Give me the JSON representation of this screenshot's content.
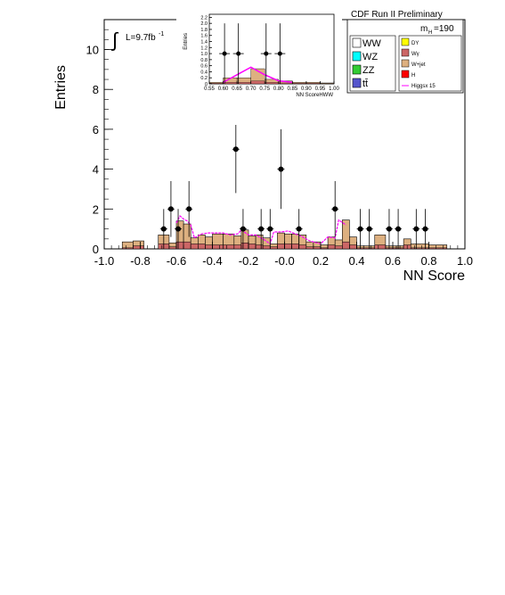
{
  "experiment_label": "CDF Run II Preliminary",
  "lumi_label": "L=9.7fb",
  "lumi_exp": "-1",
  "mass_label": "m",
  "mass_sub": "H",
  "mass_value": "=190",
  "colors": {
    "ww": "#ffffff",
    "wz": "#00ffff",
    "zz": "#33cc33",
    "tt": "#5555cc",
    "dy": "#ffff00",
    "wgamma": "#cc6666",
    "wjet": "#ddb080",
    "h": "#ff0000",
    "higgs": "#ff00ff",
    "data": "#000000"
  },
  "legend": {
    "big": [
      {
        "key": "ww",
        "label": "WW"
      },
      {
        "key": "wz",
        "label": "WZ"
      },
      {
        "key": "zz",
        "label": "ZZ"
      },
      {
        "key": "tt",
        "label": "tt̄"
      }
    ],
    "small": [
      {
        "key": "dy",
        "label": "DY"
      },
      {
        "key": "wgamma",
        "label": "Wγ"
      },
      {
        "key": "wjet",
        "label": "W+jet"
      },
      {
        "key": "h",
        "label": "H"
      },
      {
        "key": "higgs",
        "label": "Higgsx 15"
      }
    ]
  },
  "chart_data": [
    {
      "type": "bar",
      "name": "main",
      "xlabel": "NN Score",
      "ylabel": "Entries",
      "xlim": [
        -1.0,
        1.0
      ],
      "ylim": [
        0,
        11.5
      ],
      "xticks": [
        "-1.0",
        "-0.8",
        "-0.6",
        "-0.4",
        "-0.2",
        "-0.0",
        "0.2",
        "0.4",
        "0.6",
        "0.8",
        "1.0"
      ],
      "xtick_values": [
        -1.0,
        -0.8,
        -0.6,
        -0.4,
        -0.2,
        0.0,
        0.2,
        0.4,
        0.6,
        0.8,
        1.0
      ],
      "yticks": [
        "0",
        "2",
        "4",
        "6",
        "8",
        "10"
      ],
      "ytick_values": [
        0,
        2,
        4,
        6,
        8,
        10
      ],
      "bin_edges": [
        -1.0,
        -0.9,
        -0.84,
        -0.78,
        -0.7,
        -0.64,
        -0.6,
        -0.56,
        -0.52,
        -0.48,
        -0.44,
        -0.4,
        -0.34,
        -0.28,
        -0.24,
        -0.2,
        -0.16,
        -0.12,
        -0.08,
        -0.04,
        0.0,
        0.04,
        0.08,
        0.12,
        0.16,
        0.2,
        0.24,
        0.28,
        0.32,
        0.36,
        0.4,
        0.5,
        0.56,
        0.62,
        0.66,
        0.7,
        0.8,
        0.9,
        1.0
      ],
      "background_total": [
        0.0,
        0.35,
        0.4,
        0.0,
        0.7,
        0.3,
        1.4,
        1.25,
        0.55,
        0.7,
        0.6,
        0.75,
        0.75,
        0.65,
        0.95,
        0.65,
        0.7,
        0.55,
        0.25,
        0.8,
        0.75,
        0.75,
        0.7,
        0.35,
        0.35,
        0.2,
        0.6,
        0.45,
        1.45,
        0.6,
        0.15,
        0.7,
        0.15,
        0.15,
        0.5,
        0.25,
        0.2,
        0.0
      ],
      "background_red": [
        0.0,
        0.05,
        0.15,
        0.0,
        0.25,
        0.1,
        0.35,
        0.35,
        0.25,
        0.25,
        0.2,
        0.2,
        0.2,
        0.2,
        0.3,
        0.25,
        0.2,
        0.15,
        0.1,
        0.25,
        0.25,
        0.25,
        0.2,
        0.1,
        0.1,
        0.05,
        0.2,
        0.15,
        0.35,
        0.2,
        0.05,
        0.2,
        0.05,
        0.05,
        0.2,
        0.05,
        0.05,
        0.0
      ],
      "signal_x": [
        -0.6,
        -0.58,
        -0.56,
        -0.54,
        -0.52,
        -0.5,
        -0.46,
        -0.42,
        -0.38,
        -0.34,
        -0.3,
        -0.26,
        -0.24,
        -0.2,
        -0.16,
        -0.12,
        -0.08,
        -0.06,
        -0.02,
        0.02,
        0.06,
        0.1,
        0.14,
        0.2,
        0.24,
        0.28,
        0.3,
        0.34
      ],
      "signal_y": [
        1.3,
        1.65,
        1.5,
        1.4,
        1.2,
        0.55,
        0.75,
        0.8,
        0.8,
        0.8,
        0.7,
        0.75,
        0.95,
        0.7,
        0.7,
        0.5,
        0.25,
        0.85,
        0.85,
        0.9,
        0.75,
        0.6,
        0.4,
        0.25,
        0.6,
        0.55,
        1.45,
        1.2
      ],
      "data_points": [
        {
          "x": -0.67,
          "y": 1,
          "err": 1.0
        },
        {
          "x": -0.63,
          "y": 2,
          "err": 1.4
        },
        {
          "x": -0.59,
          "y": 1,
          "err": 1.0
        },
        {
          "x": -0.53,
          "y": 2,
          "err": 1.4
        },
        {
          "x": -0.27,
          "y": 5,
          "err": 2.2
        },
        {
          "x": -0.23,
          "y": 1,
          "err": 1.0
        },
        {
          "x": -0.13,
          "y": 1,
          "err": 1.0
        },
        {
          "x": -0.08,
          "y": 1,
          "err": 1.0
        },
        {
          "x": -0.02,
          "y": 4,
          "err": 2.0
        },
        {
          "x": 0.08,
          "y": 1,
          "err": 1.0
        },
        {
          "x": 0.28,
          "y": 2,
          "err": 1.4
        },
        {
          "x": 0.42,
          "y": 1,
          "err": 1.0
        },
        {
          "x": 0.47,
          "y": 1,
          "err": 1.0
        },
        {
          "x": 0.58,
          "y": 1,
          "err": 1.0
        },
        {
          "x": 0.63,
          "y": 1,
          "err": 1.0
        },
        {
          "x": 0.73,
          "y": 1,
          "err": 1.0
        },
        {
          "x": 0.78,
          "y": 1,
          "err": 1.0
        }
      ]
    },
    {
      "type": "bar",
      "name": "inset",
      "xlabel": "NN ScoreHWW",
      "ylabel": "Entries",
      "xlim": [
        0.55,
        1.0
      ],
      "ylim": [
        0,
        2.3
      ],
      "xticks": [
        "0.55",
        "0.60",
        "0.65",
        "0.70",
        "0.75",
        "0.80",
        "0.85",
        "0.90",
        "0.95",
        "1.00"
      ],
      "xtick_values": [
        0.55,
        0.6,
        0.65,
        0.7,
        0.75,
        0.8,
        0.85,
        0.9,
        0.95,
        1.0
      ],
      "yticks": [
        "0",
        "0.2",
        "0.4",
        "0.6",
        "0.8",
        "1.0",
        "1.2",
        "1.4",
        "1.6",
        "1.8",
        "2.0",
        "2.2"
      ],
      "ytick_values": [
        0,
        0.2,
        0.4,
        0.6,
        0.8,
        1.0,
        1.2,
        1.4,
        1.6,
        1.8,
        2.0,
        2.2
      ],
      "bin_edges": [
        0.55,
        0.6,
        0.65,
        0.7,
        0.75,
        0.8,
        0.85,
        0.9,
        0.95,
        1.0
      ],
      "background_total": [
        0.05,
        0.2,
        0.2,
        0.5,
        0.15,
        0.1,
        0.05,
        0.05,
        0.03
      ],
      "background_red": [
        0.02,
        0.05,
        0.05,
        0.1,
        0.05,
        0.03,
        0.02,
        0.02,
        0.01
      ],
      "signal_x": [
        0.6,
        0.65,
        0.7,
        0.75,
        0.8,
        0.85
      ],
      "signal_y": [
        0.05,
        0.3,
        0.55,
        0.3,
        0.1,
        0.05
      ],
      "data_points": [
        {
          "x": 0.605,
          "y": 1,
          "err": 1.0
        },
        {
          "x": 0.655,
          "y": 1,
          "err": 1.0
        },
        {
          "x": 0.755,
          "y": 1,
          "err": 1.0
        },
        {
          "x": 0.805,
          "y": 1,
          "err": 1.0
        }
      ]
    }
  ]
}
